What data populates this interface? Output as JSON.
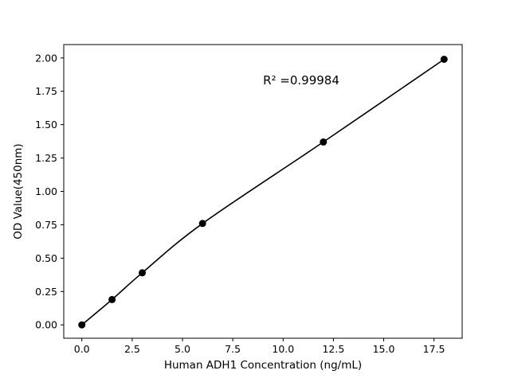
{
  "chart_data": {
    "type": "scatter",
    "title": "",
    "xlabel": "Human ADH1 Concentration (ng/mL)",
    "ylabel": "OD Value(450nm)",
    "x": [
      0,
      1.5,
      3,
      6,
      12,
      18
    ],
    "y": [
      0.0,
      0.19,
      0.39,
      0.76,
      1.37,
      1.99
    ],
    "fit_line": true,
    "annotation": {
      "text": "R² =0.99984",
      "x": 10.9,
      "y": 1.83
    },
    "xlim": [
      -0.9,
      18.9
    ],
    "ylim": [
      -0.1,
      2.1
    ],
    "x_ticks": {
      "values": [
        0,
        2.5,
        5,
        7.5,
        10,
        12.5,
        15,
        17.5
      ],
      "labels": [
        "0.0",
        "2.5",
        "5.0",
        "7.5",
        "10.0",
        "12.5",
        "15.0",
        "17.5"
      ]
    },
    "y_ticks": {
      "values": [
        0,
        0.25,
        0.5,
        0.75,
        1.0,
        1.25,
        1.5,
        1.75,
        2.0
      ],
      "labels": [
        "0.00",
        "0.25",
        "0.50",
        "0.75",
        "1.00",
        "1.25",
        "1.50",
        "1.75",
        "2.00"
      ]
    },
    "grid": false,
    "legend": "none",
    "marker_color": "#000000",
    "line_color": "#000000",
    "background_color": "#ffffff"
  }
}
